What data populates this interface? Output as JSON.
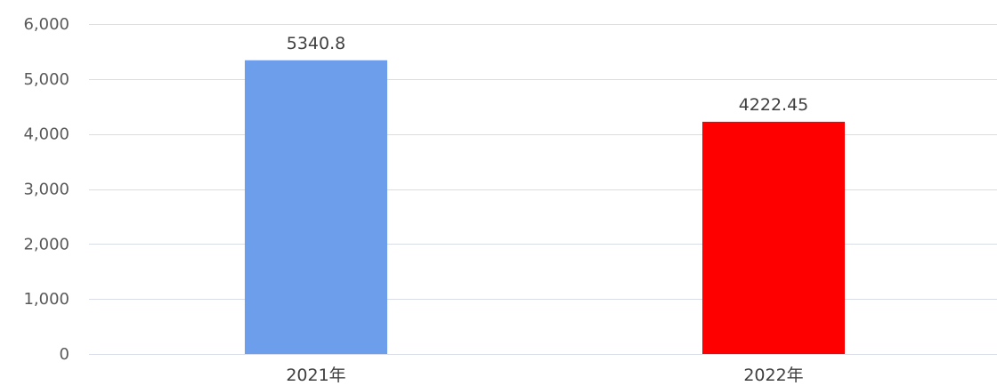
{
  "chart_data": {
    "type": "bar",
    "title": "",
    "xlabel": "",
    "ylabel": "",
    "categories": [
      "2021年",
      "2022年"
    ],
    "values": [
      5340.8,
      4222.45
    ],
    "data_labels": [
      "5340.8",
      "4222.45"
    ],
    "bar_colors": [
      "#6d9eeb",
      "#ff0000"
    ],
    "ylim": [
      0,
      6000
    ],
    "yticks": [
      0,
      1000,
      2000,
      3000,
      4000,
      5000,
      6000
    ],
    "ytick_labels": [
      "0",
      "1,000",
      "2,000",
      "3,000",
      "4,000",
      "5,000",
      "6,000"
    ],
    "grid": true,
    "gridline_color": "#d9dde8",
    "legend": "none"
  }
}
